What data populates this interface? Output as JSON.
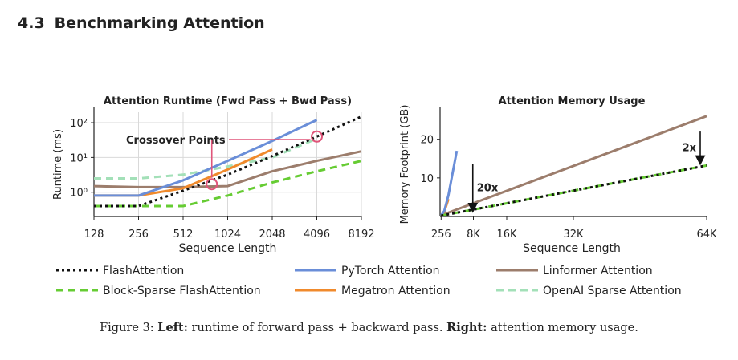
{
  "section": {
    "number": "4.3",
    "title": "Benchmarking Attention"
  },
  "caption": {
    "prefix": "Figure 3:",
    "left_label": "Left:",
    "left_text": "runtime of forward pass + backward pass.",
    "right_label": "Right:",
    "right_text": "attention memory usage."
  },
  "legend": [
    {
      "label": "FlashAttention",
      "color": "#111111",
      "dash": "dotted"
    },
    {
      "label": "PyTorch Attention",
      "color": "#6a8ed8",
      "dash": "solid"
    },
    {
      "label": "Linformer Attention",
      "color": "#9c7d6c",
      "dash": "solid"
    },
    {
      "label": "Block-Sparse FlashAttention",
      "color": "#66cc33",
      "dash": "dashed"
    },
    {
      "label": "Megatron Attention",
      "color": "#f08a2c",
      "dash": "solid"
    },
    {
      "label": "OpenAI Sparse Attention",
      "color": "#a3e0b8",
      "dash": "dashed"
    }
  ],
  "chart_data": [
    {
      "type": "line",
      "title": "Attention Runtime (Fwd Pass + Bwd Pass)",
      "xlabel": "Sequence Length",
      "ylabel": "Runtime (ms)",
      "xscale": "log2",
      "yscale": "log10",
      "x_ticks": [
        "128",
        "256",
        "512",
        "1024",
        "2048",
        "4096",
        "8192"
      ],
      "y_ticks": [
        "10²",
        "10¹",
        "10⁰"
      ],
      "xlim": [
        128,
        8192
      ],
      "ylim": [
        0.2,
        200
      ],
      "grid": true,
      "annotation": "Crossover Points",
      "series": [
        {
          "name": "FlashAttention",
          "x": [
            128,
            256,
            512,
            1024,
            2048,
            4096,
            8192
          ],
          "y": [
            0.4,
            0.4,
            1.1,
            3.2,
            11,
            40,
            150
          ]
        },
        {
          "name": "PyTorch Attention",
          "x": [
            128,
            256,
            512,
            1024,
            2048,
            4096
          ],
          "y": [
            0.8,
            0.8,
            2.2,
            8,
            30,
            120
          ]
        },
        {
          "name": "Linformer Attention",
          "x": [
            128,
            256,
            512,
            1024,
            2048,
            4096,
            8192
          ],
          "y": [
            1.5,
            1.4,
            1.4,
            1.5,
            4,
            8,
            15
          ]
        },
        {
          "name": "Block-Sparse FlashAttention",
          "x": [
            128,
            256,
            512,
            1024,
            2048,
            4096,
            8192
          ],
          "y": [
            0.4,
            0.4,
            0.4,
            0.8,
            1.9,
            4,
            8
          ]
        },
        {
          "name": "Megatron Attention",
          "x": [
            128,
            256,
            512,
            1024,
            2048
          ],
          "y": [
            0.8,
            0.8,
            1.3,
            4.5,
            17
          ]
        },
        {
          "name": "OpenAI Sparse Attention",
          "x": [
            128,
            256,
            512,
            1024,
            2048,
            4096
          ],
          "y": [
            2.5,
            2.5,
            3.2,
            5.5,
            10,
            35
          ]
        }
      ],
      "crossovers": [
        {
          "x": 800,
          "y": 1.7
        },
        {
          "x": 4096,
          "y": 40
        }
      ]
    },
    {
      "type": "line",
      "title": "Attention Memory Usage",
      "xlabel": "Sequence Length",
      "ylabel": "Memory Footprint (GB)",
      "xscale": "linear",
      "x_ticks": [
        "256",
        "8K",
        "16K",
        "32K",
        "64K"
      ],
      "y_ticks": [
        "20",
        "10"
      ],
      "xlim": [
        0,
        65536
      ],
      "ylim": [
        0,
        27
      ],
      "grid": false,
      "annotations": [
        {
          "text": "20x",
          "x": 4096,
          "y_top": 13.5,
          "y_bottom": 1.2
        },
        {
          "text": "2x",
          "x": 65536,
          "y_top": 22,
          "y_bottom": 13.5
        }
      ],
      "series": [
        {
          "name": "FlashAttention",
          "x": [
            256,
            65536
          ],
          "y": [
            0.2,
            13.2
          ]
        },
        {
          "name": "Block-Sparse FlashAttention",
          "x": [
            256,
            65536
          ],
          "y": [
            0.2,
            13.2
          ]
        },
        {
          "name": "Linformer Attention",
          "x": [
            256,
            65536
          ],
          "y": [
            0.3,
            26
          ]
        },
        {
          "name": "Megatron Attention",
          "x": [
            256,
            1024,
            2048
          ],
          "y": [
            0.3,
            1.2,
            4.5
          ]
        },
        {
          "name": "PyTorch Attention",
          "x": [
            256,
            1024,
            2048,
            4096
          ],
          "y": [
            0.3,
            1.4,
            5.5,
            17
          ]
        }
      ]
    }
  ]
}
